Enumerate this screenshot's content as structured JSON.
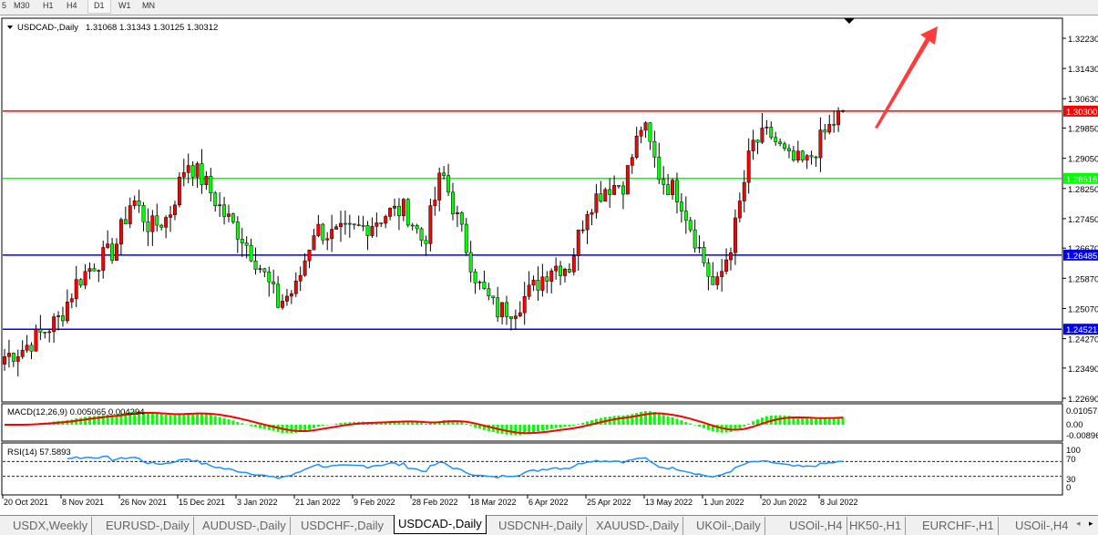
{
  "timeframes": [
    {
      "label": "5"
    },
    {
      "label": "M30"
    },
    {
      "label": "H1"
    },
    {
      "label": "H4"
    },
    {
      "label": "D1",
      "active": true
    },
    {
      "label": "W1"
    },
    {
      "label": "MN"
    }
  ],
  "chart": {
    "symbol_label": "USDCAD-,Daily",
    "ohlc": "1.31068 1.31343 1.30125 1.30312",
    "macd_label": "MACD(12,26,9) 0.005065 0.004294",
    "rsi_label": "RSI(14) 57.5893",
    "colors": {
      "bull": "#ff0000",
      "bear": "#00ff00",
      "signal": "#ff0000",
      "rsi": "#1e90ff",
      "arrow": "#ff3333"
    }
  },
  "chart_data": {
    "type": "candlestick",
    "price_ticks": [
      "1.32230",
      "1.31430",
      "1.30630",
      "1.29850",
      "1.29050",
      "1.28250",
      "1.27450",
      "1.26670",
      "1.25870",
      "1.25070",
      "1.24270",
      "1.23490",
      "1.22690"
    ],
    "ylim": [
      1.2269,
      1.3223
    ],
    "approx_close_path": [
      1.238,
      1.24,
      1.244,
      1.248,
      1.258,
      1.263,
      1.266,
      1.28,
      1.272,
      1.275,
      1.29,
      1.284,
      1.276,
      1.27,
      1.262,
      1.252,
      1.256,
      1.272,
      1.27,
      1.271,
      1.273,
      1.276,
      1.277,
      1.268,
      1.287,
      1.272,
      1.257,
      1.25,
      1.251,
      1.256,
      1.262,
      1.262,
      1.278,
      1.283,
      1.284,
      1.3,
      1.285,
      1.281,
      1.268,
      1.255,
      1.27,
      1.294,
      1.297,
      1.29,
      1.289,
      1.297,
      1.303
    ],
    "levels": [
      {
        "value": 1.303,
        "label": "1.30300",
        "color": "#ff0000"
      },
      {
        "value": 1.28516,
        "label": "1.28516",
        "color": "#00ff00"
      },
      {
        "value": 1.26485,
        "label": "1.26485",
        "color": "#0000ff"
      },
      {
        "value": 1.24521,
        "label": "1.24521",
        "color": "#0000ff"
      }
    ],
    "date_ticks": [
      "20 Oct 2021",
      "8 Nov 2021",
      "26 Nov 2021",
      "15 Dec 2021",
      "3 Jan 2022",
      "21 Jan 2022",
      "9 Feb 2022",
      "28 Feb 2022",
      "18 Mar 2022",
      "6 Apr 2022",
      "25 Apr 2022",
      "13 May 2022",
      "1 Jun 2022",
      "20 Jun 2022",
      "8 Jul 2022"
    ],
    "macd_ticks": [
      "0.010578",
      "0.00",
      "-0.00896"
    ],
    "rsi_ticks": [
      "100",
      "70",
      "30",
      "0"
    ]
  },
  "tabs": [
    {
      "label": "USDX,Weekly"
    },
    {
      "label": "EURUSD-,Daily"
    },
    {
      "label": "AUDUSD-,Daily"
    },
    {
      "label": "USDCHF-,Daily"
    },
    {
      "label": "USDCAD-,Daily",
      "active": true
    },
    {
      "label": "USDCNH-,Daily"
    },
    {
      "label": "XAUUSD-,Daily"
    },
    {
      "label": "UKOil-,Daily"
    },
    {
      "label": "USOil-,H4"
    },
    {
      "label": "HK50-,H1"
    },
    {
      "label": "EURCHF-,H1"
    },
    {
      "label": "USOil-,H4"
    }
  ]
}
